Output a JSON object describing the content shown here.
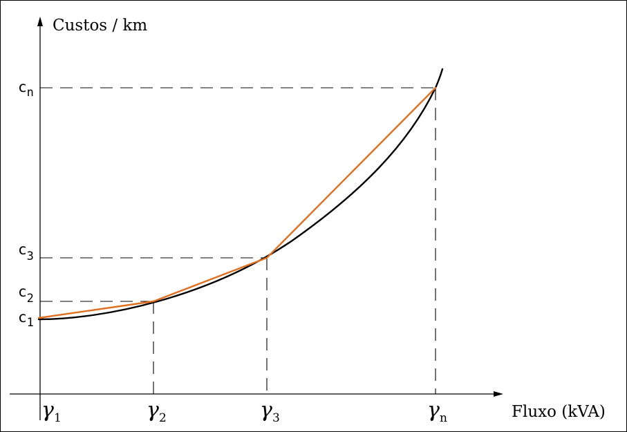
{
  "y_axis_label": "Custos / km",
  "x_axis_label": "Fluxo (kVA)",
  "cost_labels": [
    {
      "base": "c",
      "sub": "1"
    },
    {
      "base": "c",
      "sub": "2"
    },
    {
      "base": "c",
      "sub": "3"
    },
    {
      "base": "c",
      "sub": "n"
    }
  ],
  "flow_labels": [
    {
      "base": "γ",
      "sub": "1"
    },
    {
      "base": "γ",
      "sub": "2"
    },
    {
      "base": "γ",
      "sub": "3"
    },
    {
      "base": "γ",
      "sub": "n"
    }
  ],
  "colors": {
    "axis": "#000000",
    "cost_curve": "#000000",
    "piecewise_approximation": "#e07020"
  }
}
